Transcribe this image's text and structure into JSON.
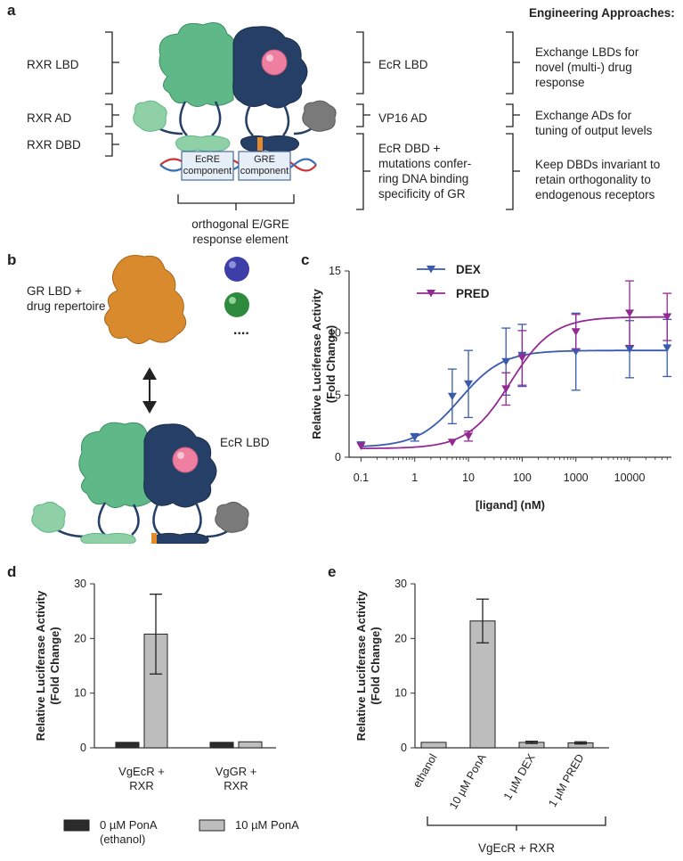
{
  "panel_a": {
    "label": "a",
    "left_labels": [
      "RXR LBD",
      "RXR AD",
      "RXR DBD"
    ],
    "mid_labels": [
      "EcR LBD",
      "VP16 AD",
      "EcR DBD +\nmutations confer-\nring DNA binding\nspecificity of GR"
    ],
    "approaches_title": "Engineering Approaches:",
    "approaches": [
      "Exchange LBDs for\nnovel (multi-) drug\nresponse",
      "Exchange ADs for\ntuning of output levels",
      "Keep DBDs invariant to\nretain orthogonality to\nendogenous receptors"
    ],
    "component1": "EcRE\ncomponent",
    "component2": "GRE\ncomponent",
    "element_caption": "orthogonal E/GRE\nresponse element",
    "colors": {
      "green": "#5fb887",
      "navy": "#263f66",
      "pink": "#ee7fa0",
      "gray": "#7a7a7a",
      "orange": "#e48c2c"
    }
  },
  "panel_b": {
    "label": "b",
    "gr_label": "GR LBD +\ndrug repertoire",
    "dots": "....",
    "ecr_label": "EcR LBD",
    "colors": {
      "orange": "#d98a2c",
      "purple": "#3e3ea8",
      "green": "#2e8b3e"
    }
  },
  "panel_c": {
    "label": "c"
  },
  "panel_d": {
    "label": "d"
  },
  "panel_e": {
    "label": "e"
  },
  "chart_data": [
    {
      "id": "c",
      "type": "line",
      "xscale": "log",
      "xlabel": "[ligand] (nM)",
      "ylabel": "Relative Luciferase Activity\n(Fold Change)",
      "xticks": [
        "0.1",
        "1",
        "10",
        "100",
        "1000",
        "10000"
      ],
      "xtick_values": [
        0.1,
        1,
        10,
        100,
        1000,
        10000
      ],
      "yticks": [
        0,
        5,
        10,
        15
      ],
      "xlim": [
        0.06,
        60000
      ],
      "ylim": [
        0,
        15
      ],
      "legend": [
        "DEX",
        "PRED"
      ],
      "series": [
        {
          "name": "DEX",
          "color": "#3a5aad",
          "marker": "down-triangle",
          "x": [
            0.1,
            1,
            5,
            10,
            50,
            100,
            1000,
            10000,
            50000
          ],
          "y": [
            1.0,
            1.6,
            4.9,
            5.9,
            7.7,
            8.2,
            8.5,
            8.7,
            8.8
          ],
          "err": [
            0.1,
            0.3,
            2.2,
            2.7,
            2.7,
            2.5,
            3.1,
            2.3,
            2.3
          ],
          "fit_bottom": 0.8,
          "fit_top": 8.6,
          "fit_ec50": 7
        },
        {
          "name": "PRED",
          "color": "#932a93",
          "marker": "down-triangle",
          "x": [
            0.1,
            5,
            10,
            50,
            100,
            1000,
            10000,
            50000
          ],
          "y": [
            0.9,
            1.2,
            1.7,
            5.5,
            8.0,
            10.1,
            11.6,
            11.3
          ],
          "err": [
            0.1,
            0.1,
            0.4,
            1.3,
            2.2,
            1.4,
            2.6,
            1.9
          ],
          "fit_bottom": 0.7,
          "fit_top": 11.3,
          "fit_ec50": 60
        }
      ]
    },
    {
      "id": "d",
      "type": "bar",
      "ylabel": "Relative Luciferase Activity\n(Fold Change)",
      "yticks": [
        0,
        10,
        20,
        30
      ],
      "ylim": [
        0,
        30
      ],
      "groups": [
        "VgEcR +\nRXR",
        "VgGR +\nRXR"
      ],
      "series": [
        {
          "name": "0 µM PonA\n(ethanol)",
          "color": "#2b2b2b",
          "values": [
            1.0,
            1.0
          ],
          "err": [
            0,
            0
          ]
        },
        {
          "name": "10 µM PonA",
          "color": "#bdbdbd",
          "values": [
            20.8,
            1.1
          ],
          "err": [
            7.3,
            0
          ]
        }
      ]
    },
    {
      "id": "e",
      "type": "bar",
      "ylabel": "Relative Luciferase Activity\n(Fold Change)",
      "yticks": [
        0,
        10,
        20,
        30
      ],
      "ylim": [
        0,
        30
      ],
      "categories": [
        "ethanol",
        "10 µM PonA",
        "1 µM DEX",
        "1 µM PRED"
      ],
      "values": [
        1.0,
        23.2,
        1.0,
        0.9
      ],
      "err": [
        0,
        4.0,
        0.2,
        0.2
      ],
      "color": "#bdbdbd",
      "group_label": "VgEcR + RXR"
    }
  ]
}
